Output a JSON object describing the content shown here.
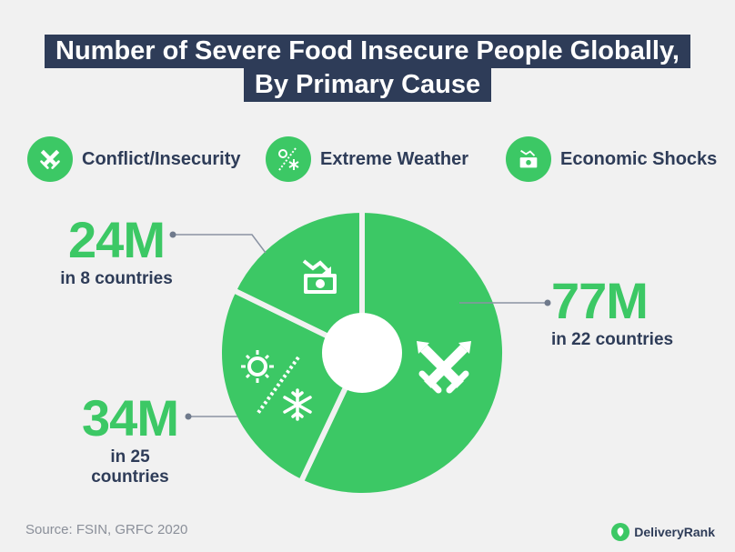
{
  "title": {
    "line1": "Number of Severe Food Insecure People Globally,",
    "line2": "By Primary Cause"
  },
  "legend": [
    {
      "label": "Conflict/Insecurity",
      "icon": "crossed-swords-icon"
    },
    {
      "label": "Extreme Weather",
      "icon": "sun-snowflake-icon"
    },
    {
      "label": "Economic Shocks",
      "icon": "falling-money-icon"
    }
  ],
  "colors": {
    "segment": "#3cc865",
    "title_bg": "#2e3c58",
    "text_dark": "#2e3c58",
    "background": "#f1f1f1"
  },
  "chart_data": {
    "type": "pie",
    "labels": [
      "Conflict/Insecurity",
      "Extreme Weather",
      "Economic Shocks"
    ],
    "values": [
      77,
      34,
      24
    ],
    "unit": "M",
    "value_labels": [
      "77M",
      "34M",
      "24M"
    ],
    "countries_labels": [
      "in 22 countries",
      "in 25 countries",
      "in 8 countries"
    ],
    "style": "donut-center-hole"
  },
  "footer": {
    "source": "Source: FSIN, GRFC 2020",
    "brand": "DeliveryRank"
  }
}
